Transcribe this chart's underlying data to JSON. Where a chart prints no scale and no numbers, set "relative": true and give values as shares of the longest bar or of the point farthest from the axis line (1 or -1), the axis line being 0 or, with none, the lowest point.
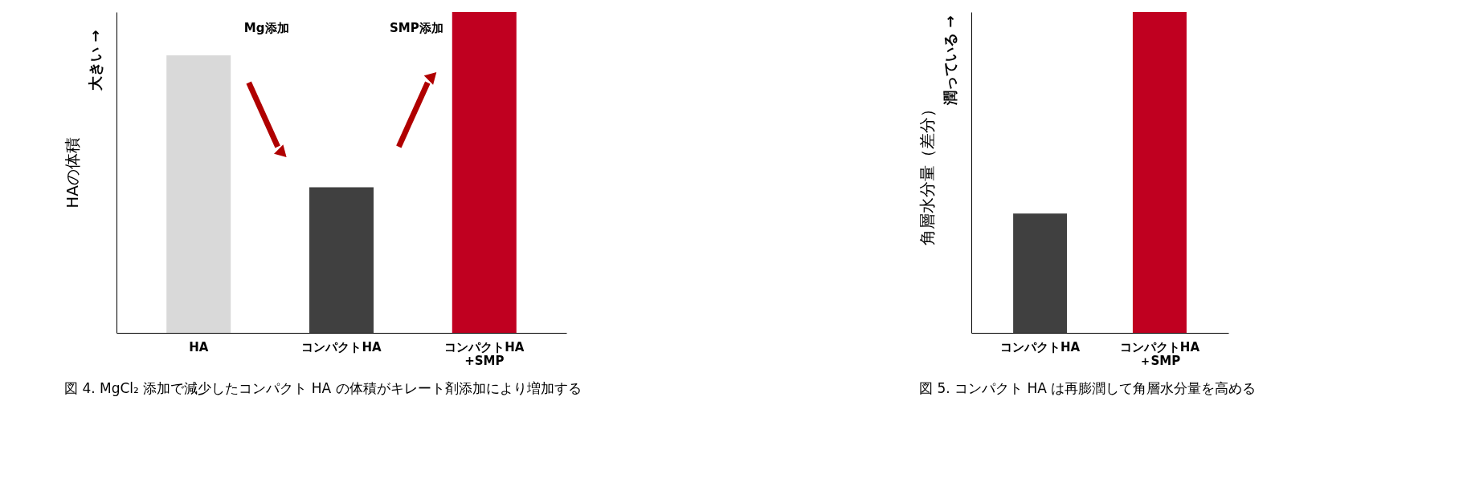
{
  "chart_data": [
    {
      "type": "bar",
      "relative": true,
      "title": "図 4. MgCl₂ 添加で減少したコンパクト HA の体積がキレート剤添加により増加する",
      "ylabel": "HAの体積",
      "categories": [
        "HA",
        "コンパクトHA",
        "コンパクトHA\n+SMP"
      ],
      "values": [
        0.865,
        0.454,
        1
      ],
      "colors": [
        "#d9d9d9",
        "#404040",
        "#c00020"
      ],
      "annotations": [
        "大きい →",
        "Mg添加",
        "SMP添加"
      ]
    },
    {
      "type": "bar",
      "relative": true,
      "title": "図 5. コンパクト HA は再膨潤して角層水分量を高める",
      "ylabel": "角層水分量（差分）",
      "categories": [
        "コンパクトHA",
        "コンパクトHA\n＋SMP"
      ],
      "values": [
        0.372,
        1
      ],
      "colors": [
        "#404040",
        "#c00020"
      ],
      "annotations": [
        "潤っている →"
      ]
    }
  ]
}
